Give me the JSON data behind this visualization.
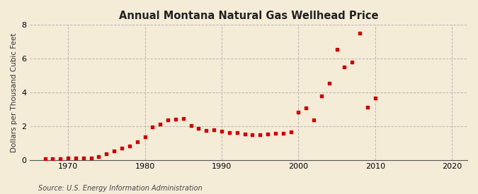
{
  "title": "Annual Montana Natural Gas Wellhead Price",
  "ylabel": "Dollars per Thousand Cubic Feet",
  "source": "Source: U.S. Energy Information Administration",
  "background_color": "#f5ecd8",
  "plot_background_color": "#f5ecd8",
  "marker_color": "#cc0000",
  "xlim": [
    1965,
    2022
  ],
  "ylim": [
    0,
    8
  ],
  "xticks": [
    1970,
    1980,
    1990,
    2000,
    2010,
    2020
  ],
  "yticks": [
    0,
    2,
    4,
    6,
    8
  ],
  "years": [
    1967,
    1968,
    1969,
    1970,
    1971,
    1972,
    1973,
    1974,
    1975,
    1976,
    1977,
    1978,
    1979,
    1980,
    1981,
    1982,
    1983,
    1984,
    1985,
    1986,
    1987,
    1988,
    1989,
    1990,
    1991,
    1992,
    1993,
    1994,
    1995,
    1996,
    1997,
    1998,
    1999,
    2000,
    2001,
    2002,
    2003,
    2004,
    2005,
    2006,
    2007,
    2008,
    2009,
    2010
  ],
  "values": [
    0.07,
    0.08,
    0.08,
    0.09,
    0.09,
    0.1,
    0.12,
    0.2,
    0.37,
    0.52,
    0.68,
    0.82,
    1.05,
    1.38,
    1.95,
    2.1,
    2.38,
    2.42,
    2.43,
    2.05,
    1.88,
    1.75,
    1.8,
    1.68,
    1.62,
    1.62,
    1.54,
    1.5,
    1.47,
    1.55,
    1.58,
    1.56,
    1.67,
    2.82,
    3.07,
    2.36,
    3.78,
    4.55,
    6.53,
    5.52,
    5.78,
    7.52,
    3.12,
    3.65
  ]
}
